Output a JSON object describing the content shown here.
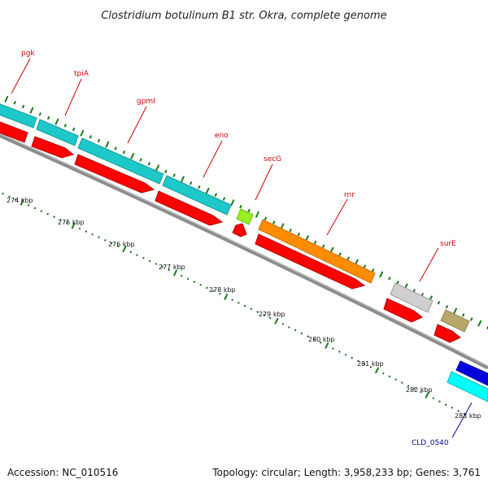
{
  "title": "Clostridium botulinum B1 str. Okra, complete genome",
  "footer": {
    "accession": "Accession: NC_010516",
    "topology": "Topology: circular; Length: 3,958,233 bp; Genes: 3,761"
  },
  "tick_labels": [
    "274 kbp",
    "275 kbp",
    "276 kbp",
    "277 kbp",
    "278 kbp",
    "279 kbp",
    "280 kbp",
    "281 kbp",
    "282 kbp",
    "283 kbp"
  ],
  "genes": [
    {
      "name": "pgk",
      "color": "#1ec8c8"
    },
    {
      "name": "tpiA",
      "color": "#1ec8c8"
    },
    {
      "name": "gpmI",
      "color": "#1ec8c8"
    },
    {
      "name": "eno",
      "color": "#1ec8c8"
    },
    {
      "name": "secG",
      "color": "#99ee22"
    },
    {
      "name": "rnr",
      "color": "#ff8c00"
    },
    {
      "name": "surE",
      "color": "#bbbbbb"
    },
    {
      "name": "CLD_0540",
      "color": "#00ffff"
    }
  ],
  "colors": {
    "cds_forward": "#ff0000",
    "backbone": "#8c8c8c",
    "gc_tick": "#1a7a1a",
    "blue_feature": "#0000dd",
    "olive_feature": "#b5a86a"
  }
}
